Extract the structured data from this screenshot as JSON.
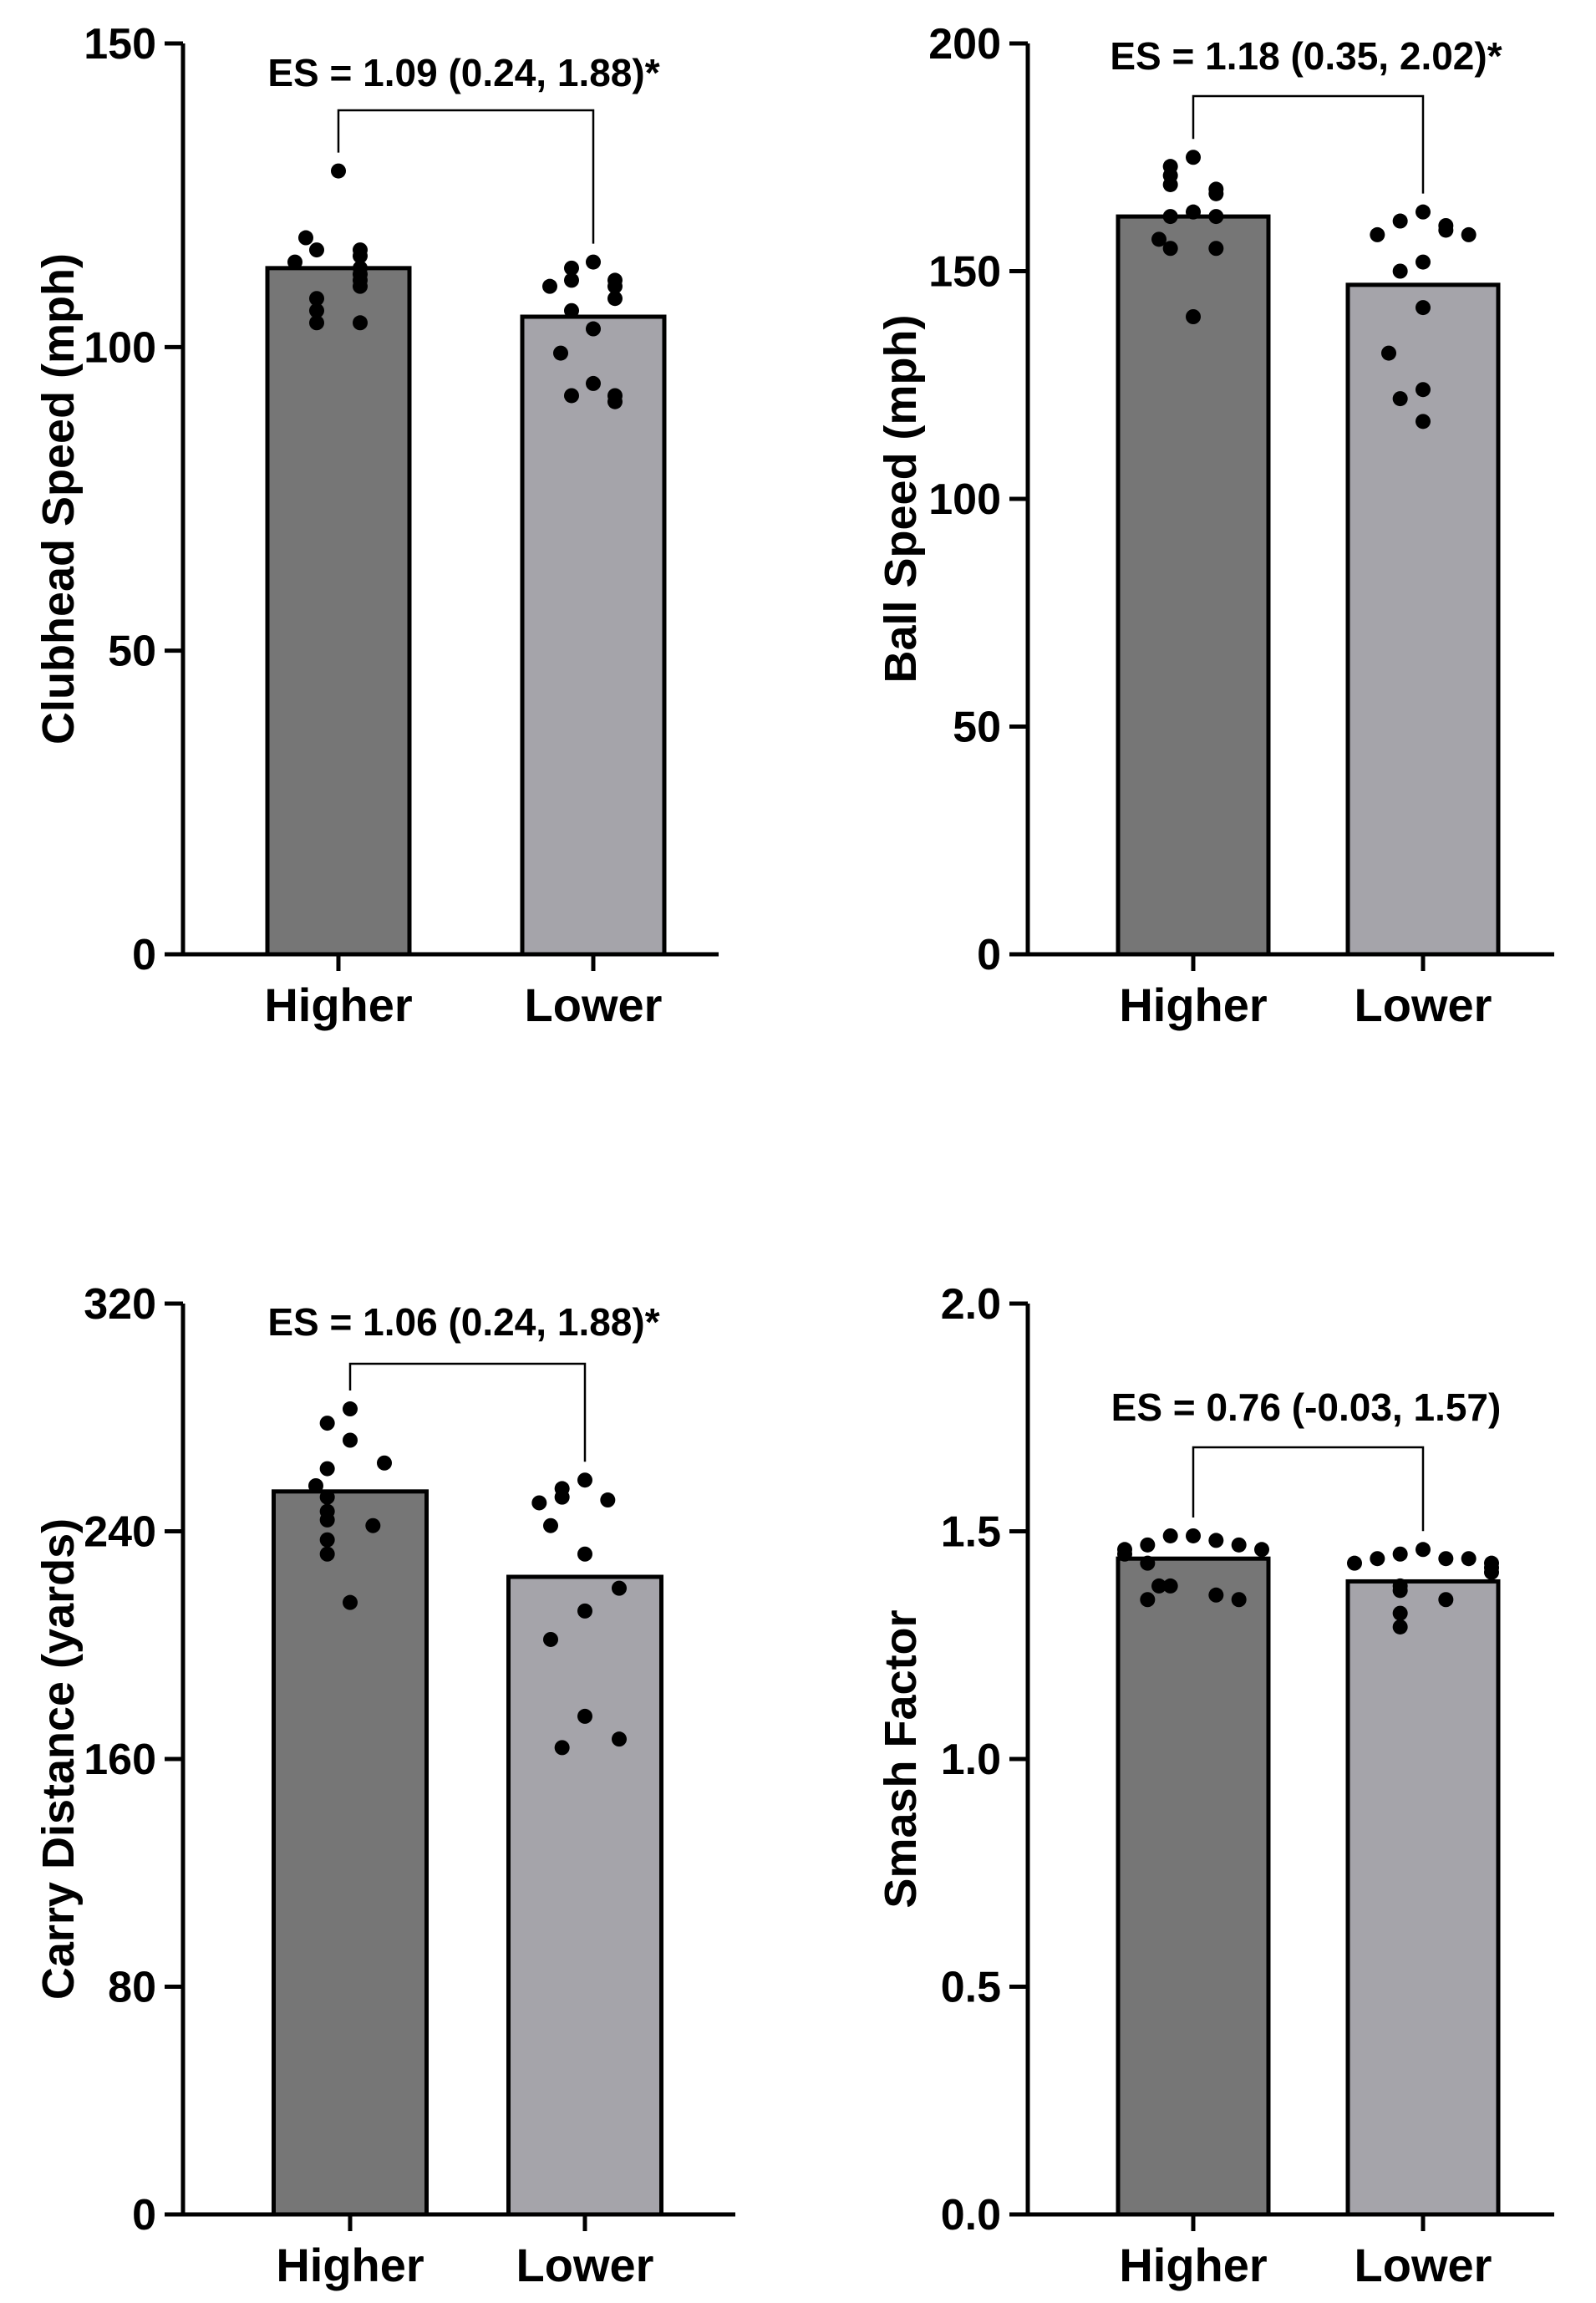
{
  "chart_data": [
    {
      "type": "bar",
      "ylabel": "Clubhead Speed (mph)",
      "ylim": [
        0,
        150
      ],
      "yticks": [
        "0",
        "50",
        "100",
        "150"
      ],
      "categories": [
        "Higher",
        "Lower"
      ],
      "values": [
        113,
        105
      ],
      "bar_colors": [
        "#767676",
        "#a5a4aa"
      ],
      "points": [
        [
          129,
          118,
          116,
          116,
          115,
          114,
          113,
          112,
          111,
          110,
          108,
          106,
          104,
          104
        ],
        [
          114,
          113,
          111,
          111,
          110,
          110,
          108,
          106,
          103,
          99,
          94,
          92,
          92,
          91
        ]
      ],
      "annotation": "ES = 1.09 (0.24, 1.88)*"
    },
    {
      "type": "bar",
      "ylabel": "Ball Speed (mph)",
      "ylim": [
        0,
        200
      ],
      "yticks": [
        "0",
        "50",
        "100",
        "150",
        "200"
      ],
      "categories": [
        "Higher",
        "Lower"
      ],
      "values": [
        162,
        147
      ],
      "bar_colors": [
        "#767676",
        "#a5a4aa"
      ],
      "points": [
        [
          175,
          173,
          171,
          169,
          168,
          167,
          163,
          162,
          162,
          157,
          155,
          155,
          140
        ],
        [
          163,
          161,
          160,
          159,
          158,
          158,
          152,
          150,
          142,
          132,
          124,
          122,
          117
        ]
      ],
      "annotation": "ES = 1.18 (0.35, 2.02)*"
    },
    {
      "type": "bar",
      "ylabel": "Carry Distance (yards)",
      "ylim": [
        0,
        320
      ],
      "yticks": [
        "0",
        "80",
        "160",
        "240",
        "320"
      ],
      "categories": [
        "Higher",
        "Lower"
      ],
      "values": [
        254,
        224
      ],
      "bar_colors": [
        "#767676",
        "#a5a4aa"
      ],
      "points": [
        [
          283,
          278,
          272,
          264,
          262,
          256,
          252,
          247,
          244,
          242,
          237,
          232,
          215
        ],
        [
          258,
          255,
          252,
          251,
          250,
          242,
          232,
          220,
          212,
          202,
          175,
          167,
          164
        ]
      ],
      "annotation": "ES = 1.06 (0.24, 1.88)*"
    },
    {
      "type": "bar",
      "ylabel": "Smash Factor",
      "ylim": [
        0,
        2
      ],
      "yticks": [
        "0.0",
        "0.5",
        "1.0",
        "1.5",
        "2.0"
      ],
      "categories": [
        "Higher",
        "Lower"
      ],
      "values": [
        1.44,
        1.39
      ],
      "bar_colors": [
        "#767676",
        "#a5a4aa"
      ],
      "points": [
        [
          1.49,
          1.49,
          1.48,
          1.47,
          1.47,
          1.46,
          1.46,
          1.45,
          1.43,
          1.38,
          1.38,
          1.36,
          1.35,
          1.35
        ],
        [
          1.46,
          1.45,
          1.44,
          1.44,
          1.44,
          1.43,
          1.43,
          1.42,
          1.41,
          1.38,
          1.37,
          1.35,
          1.32,
          1.29
        ]
      ],
      "annotation": "ES = 0.76 (-0.03, 1.57)"
    }
  ]
}
